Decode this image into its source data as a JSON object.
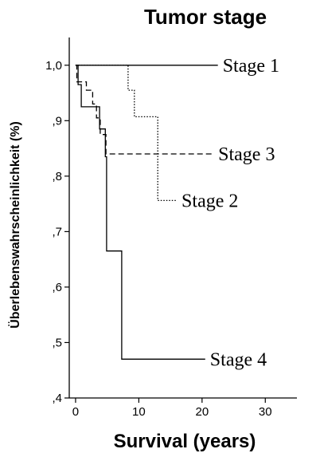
{
  "chart_data": {
    "type": "line",
    "title": "Tumor stage",
    "xlabel": "Survival (years)",
    "ylabel": "Überlebenswahrscheinlichkeit (%)",
    "xlim": [
      -1,
      35
    ],
    "ylim": [
      0.4,
      1.05
    ],
    "xticks": [
      0,
      10,
      20,
      30
    ],
    "xtick_labels": [
      "0",
      "10",
      "20",
      "30"
    ],
    "yticks": [
      1.0,
      0.9,
      0.8,
      0.7,
      0.6,
      0.5,
      0.4
    ],
    "ytick_labels": [
      "1,0",
      ",9",
      ",8",
      ",7",
      ",6",
      ",5",
      ",4"
    ],
    "grid": false,
    "series": [
      {
        "name": "Stage 1",
        "style": "solid",
        "x": [
          0,
          22.5
        ],
        "y": [
          1.0,
          1.0
        ]
      },
      {
        "name": "Stage 2",
        "style": "dotted",
        "x": [
          0,
          8.3,
          8.3,
          9.3,
          9.3,
          13.0,
          13.0,
          16.0
        ],
        "y": [
          1.0,
          1.0,
          0.955,
          0.955,
          0.907,
          0.907,
          0.756,
          0.756
        ]
      },
      {
        "name": "Stage 3",
        "style": "dashed",
        "x": [
          0,
          0.2,
          0.2,
          1.7,
          1.7,
          2.7,
          2.7,
          3.3,
          3.3,
          3.9,
          3.9,
          4.8,
          4.8,
          21.8
        ],
        "y": [
          1.0,
          1.0,
          0.97,
          0.97,
          0.955,
          0.955,
          0.93,
          0.93,
          0.905,
          0.905,
          0.875,
          0.875,
          0.84,
          0.84
        ]
      },
      {
        "name": "Stage 4",
        "style": "solid-thin",
        "x": [
          0,
          0.4,
          0.4,
          0.9,
          0.9,
          3.8,
          3.8,
          4.7,
          4.7,
          4.9,
          4.9,
          7.3,
          7.3,
          20.5
        ],
        "y": [
          1.0,
          1.0,
          0.965,
          0.965,
          0.925,
          0.925,
          0.885,
          0.885,
          0.835,
          0.835,
          0.665,
          0.665,
          0.47,
          0.47
        ]
      }
    ],
    "annotations": [
      {
        "text": "Stage 1",
        "series": "Stage 1"
      },
      {
        "text": "Stage 2",
        "series": "Stage 2"
      },
      {
        "text": "Stage 3",
        "series": "Stage 3"
      },
      {
        "text": "Stage 4",
        "series": "Stage 4"
      }
    ]
  }
}
